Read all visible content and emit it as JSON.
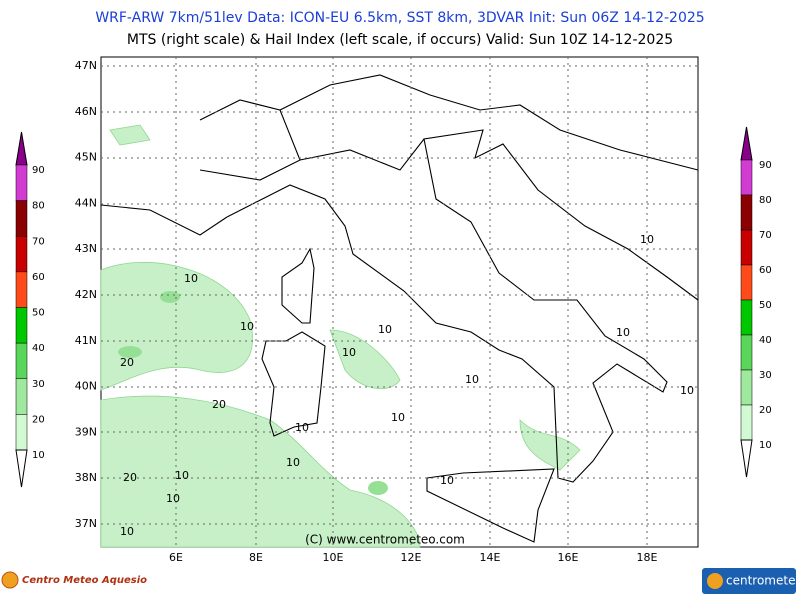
{
  "header": {
    "line1": "WRF-ARW 7km/51lev   Data: ICON-EU 6.5km, SST 8km, 3DVAR    Init: Sun 06Z 14-12-2025",
    "line2": "MTS (right scale) & Hail Index (left scale, if occurs) Valid: Sun 10Z 14-12-2025"
  },
  "axes": {
    "lat_labels": [
      "47N",
      "46N",
      "45N",
      "44N",
      "43N",
      "42N",
      "41N",
      "40N",
      "39N",
      "38N",
      "37N"
    ],
    "lon_labels": [
      "6E",
      "8E",
      "10E",
      "12E",
      "14E",
      "16E",
      "18E"
    ]
  },
  "colorbars": {
    "levels": [
      90,
      80,
      70,
      60,
      50,
      40,
      30,
      20,
      10
    ],
    "colors": [
      "#8b008b",
      "#d23cd2",
      "#8b0000",
      "#c80000",
      "#ff4a1a",
      "#00c800",
      "#5ad75a",
      "#9ee99e",
      "#d2fad2",
      "#ffffff"
    ]
  },
  "contour_labels": [
    "10",
    "10",
    "10",
    "10",
    "10",
    "10",
    "10",
    "10",
    "10",
    "10",
    "10",
    "10",
    "10",
    "10",
    "20",
    "20",
    "20",
    "10"
  ],
  "footer": {
    "copyright": "(C) www.centrometeo.com",
    "logo_left": "Centro Meteo Aquesio",
    "logo_right": "centrometeo"
  }
}
